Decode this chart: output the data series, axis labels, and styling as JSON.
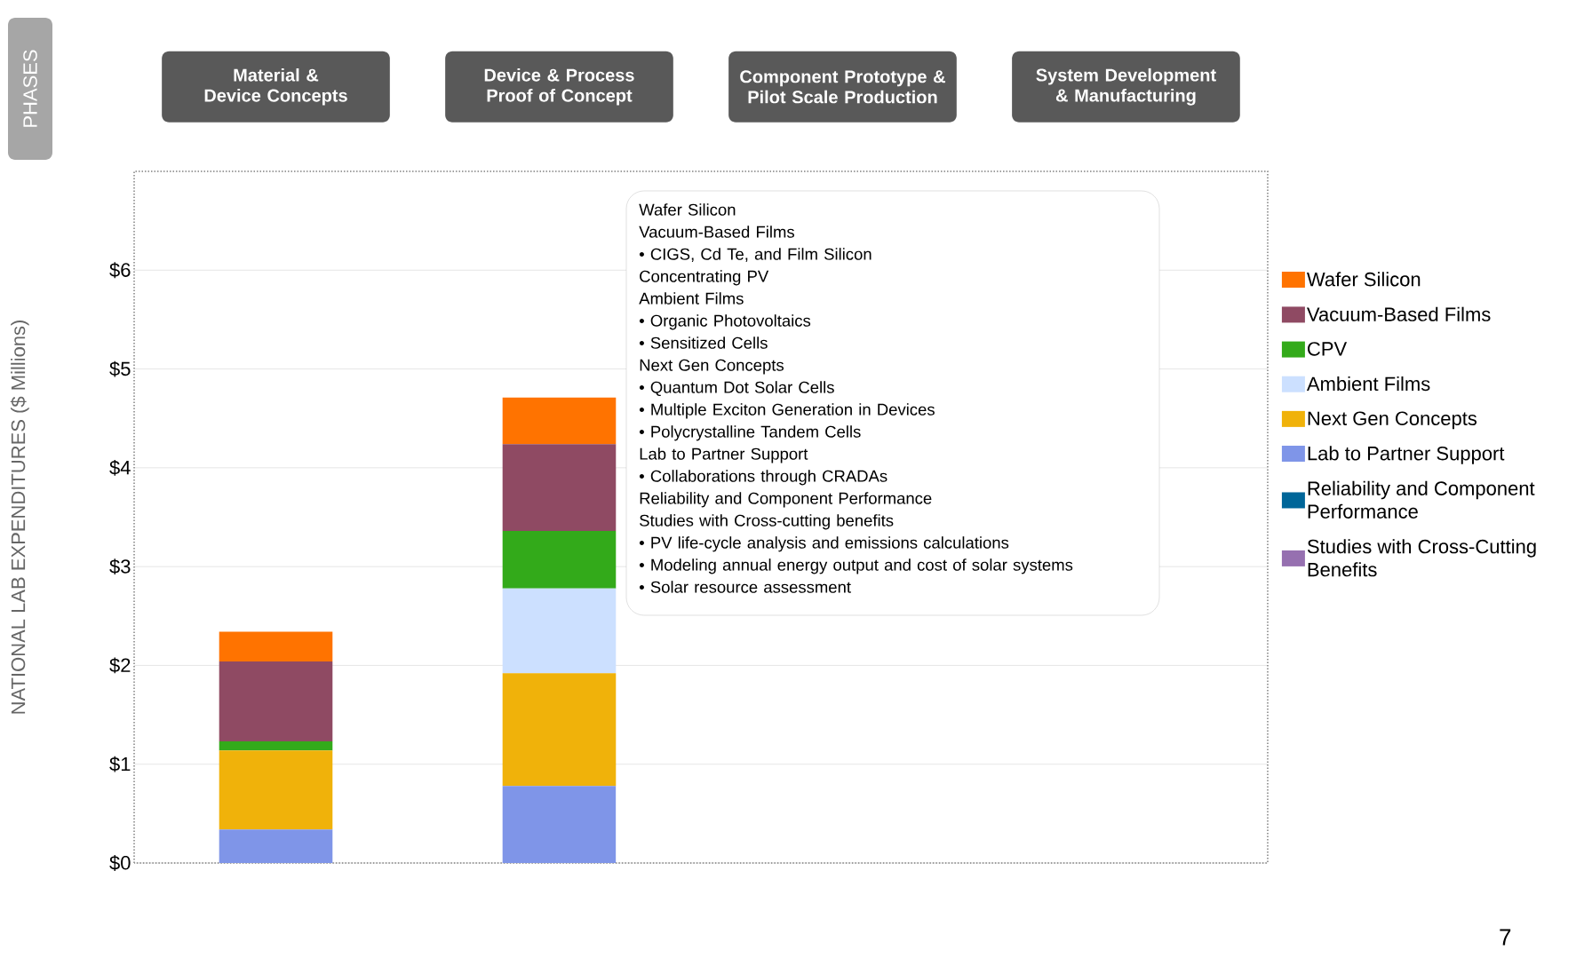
{
  "chart_data": {
    "type": "bar",
    "stacked": true,
    "ylabel": "NATIONAL LAB EXPENDITURES ($ Millions)",
    "categories": [
      "Material & Device Concepts",
      "Device & Process Proof of Concept",
      "Component Prototype & Pilot Scale Production",
      "System Development & Manufacturing"
    ],
    "series": [
      {
        "name": "Studies with Cross-Cutting Benefits",
        "color": "#9670b0",
        "values": [
          0,
          0,
          null,
          null
        ]
      },
      {
        "name": "Reliability and Component Performance",
        "color": "#006699",
        "values": [
          0,
          0,
          null,
          null
        ]
      },
      {
        "name": "Lab to Partner Support",
        "color": "#7f95e8",
        "values": [
          0.34,
          0.78,
          null,
          null
        ]
      },
      {
        "name": "Next Gen Concepts",
        "color": "#f0b20a",
        "values": [
          0.8,
          1.14,
          null,
          null
        ]
      },
      {
        "name": "Ambient Films",
        "color": "#cce0ff",
        "values": [
          0,
          0.86,
          null,
          null
        ]
      },
      {
        "name": "CPV",
        "color": "#33aa1a",
        "values": [
          0.09,
          0.58,
          null,
          null
        ]
      },
      {
        "name": "Vacuum-Based Films",
        "color": "#8f4a63",
        "values": [
          0.81,
          0.88,
          null,
          null
        ]
      },
      {
        "name": "Wafer Silicon",
        "color": "#ff7300",
        "values": [
          0.3,
          0.47,
          null,
          null
        ]
      }
    ],
    "ylim": [
      0,
      7
    ],
    "yticks": [
      {
        "value": 0,
        "label": "$0"
      },
      {
        "value": 1,
        "label": "$1"
      },
      {
        "value": 2,
        "label": "$2"
      },
      {
        "value": 3,
        "label": "$3"
      },
      {
        "value": 4,
        "label": "$4"
      },
      {
        "value": 5,
        "label": "$5"
      },
      {
        "value": 6,
        "label": "$6"
      }
    ],
    "grid": "y",
    "legend": "right",
    "annotations": [
      "PHASES",
      "Wafer Silicon",
      "Vacuum-Based Films",
      "• CIGS, Cd Te, and Film Silicon",
      "Concentrating PV",
      "Ambient Films",
      "• Organic Photovoltaics",
      "• Sensitized Cells",
      "Next Gen Concepts",
      "• Quantum Dot Solar Cells",
      "• Multiple Exciton Generation in Devices",
      "• Polycrystalline Tandem Cells",
      "Lab to Partner Support",
      "• Collaborations through CRADAs",
      "Reliability and Component Performance",
      "Studies with Cross-cutting benefits",
      "• PV life-cycle analysis and emissions calculations",
      "• Modeling annual energy output and cost of solar systems",
      "• Solar resource assessment",
      "7"
    ]
  }
}
